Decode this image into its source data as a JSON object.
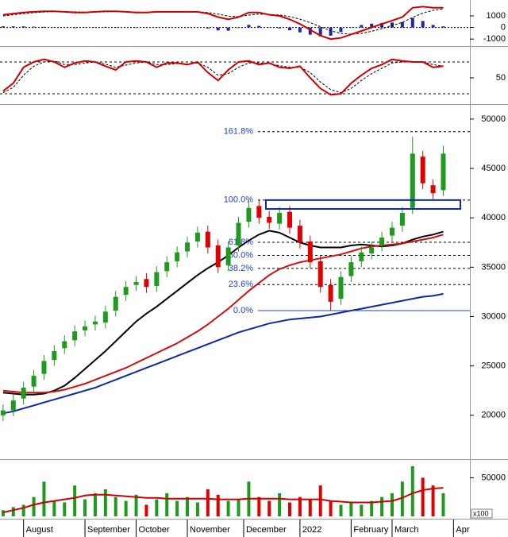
{
  "chart_data": [
    {
      "type": "macd",
      "ylim": [
        -1400,
        2100
      ],
      "yticks": [
        1000,
        0,
        -1000
      ],
      "macd": {
        "color": "#d00000",
        "values": [
          1100,
          1200,
          1300,
          1350,
          1400,
          1400,
          1350,
          1300,
          1300,
          1350,
          1400,
          1400,
          1350,
          1300,
          1300,
          1350,
          1350,
          1350,
          1350,
          1350,
          1200,
          900,
          700,
          900,
          1300,
          1300,
          1100,
          1000,
          700,
          300,
          -200,
          -700,
          -1000,
          -900,
          -600,
          -300,
          0,
          300,
          600,
          900,
          1700,
          1800,
          1700,
          1700
        ]
      },
      "signal": {
        "color": "#000000",
        "values": [
          1000,
          1100,
          1200,
          1280,
          1340,
          1370,
          1370,
          1350,
          1330,
          1330,
          1350,
          1370,
          1360,
          1340,
          1320,
          1330,
          1340,
          1340,
          1340,
          1340,
          1290,
          1150,
          980,
          940,
          1070,
          1160,
          1130,
          1080,
          940,
          720,
          420,
          70,
          -290,
          -510,
          -580,
          -510,
          -330,
          -100,
          170,
          440,
          870,
          1240,
          1480,
          1600
        ]
      },
      "histogram": {
        "color": "#1a2aa8",
        "values": [
          100,
          100,
          100,
          70,
          60,
          30,
          -20,
          -50,
          -30,
          20,
          50,
          30,
          -10,
          -40,
          -20,
          20,
          10,
          10,
          10,
          10,
          -90,
          -250,
          -280,
          -40,
          230,
          140,
          -30,
          -80,
          -240,
          -420,
          -620,
          -770,
          -710,
          -390,
          -20,
          210,
          330,
          400,
          430,
          460,
          830,
          560,
          220,
          100
        ]
      }
    },
    {
      "type": "stochastic",
      "ylim": [
        5,
        104
      ],
      "yticks": [
        50
      ],
      "levels": [
        20,
        80
      ],
      "k": {
        "color": "#d00000",
        "values": [
          25,
          40,
          70,
          80,
          85,
          80,
          70,
          78,
          82,
          80,
          72,
          65,
          80,
          82,
          80,
          70,
          78,
          78,
          75,
          80,
          60,
          45,
          65,
          80,
          82,
          75,
          78,
          70,
          68,
          72,
          50,
          30,
          18,
          20,
          40,
          55,
          68,
          75,
          85,
          82,
          80,
          80,
          70,
          72
        ]
      },
      "d": {
        "color": "#000000",
        "values": [
          22,
          32,
          55,
          72,
          80,
          82,
          75,
          75,
          78,
          80,
          76,
          70,
          74,
          78,
          80,
          75,
          75,
          77,
          76,
          78,
          70,
          55,
          58,
          70,
          78,
          78,
          77,
          73,
          70,
          70,
          60,
          42,
          28,
          22,
          30,
          45,
          58,
          68,
          78,
          80,
          80,
          80,
          75,
          72
        ]
      }
    },
    {
      "type": "candlestick",
      "ylim": [
        15800,
        51200
      ],
      "yticks": [
        20000,
        25000,
        30000,
        35000,
        40000,
        45000,
        50000
      ],
      "up_color": "#1f9a1f",
      "down_color": "#e00000",
      "open": [
        20000,
        20500,
        21700,
        22900,
        24200,
        25600,
        26800,
        27600,
        28600,
        29200,
        29400,
        30600,
        32200,
        33200,
        33800,
        33100,
        34600,
        35600,
        36600,
        37600,
        38600,
        37200,
        35200,
        37200,
        39600,
        41200,
        40100,
        39400,
        40600,
        39200,
        37600,
        35600,
        33200,
        31800,
        34100,
        35600,
        36400,
        37200,
        38200,
        39200,
        41000,
        46200,
        43300,
        42800
      ],
      "high": [
        21100,
        22100,
        23400,
        24600,
        26100,
        27100,
        28100,
        29100,
        29600,
        30100,
        31100,
        32600,
        33600,
        34100,
        34400,
        35100,
        36100,
        37100,
        38100,
        39100,
        39200,
        37800,
        37600,
        40100,
        41800,
        41800,
        40700,
        41100,
        41200,
        39800,
        38200,
        36200,
        33800,
        34600,
        36100,
        37100,
        37600,
        38600,
        39600,
        41100,
        48200,
        46800,
        43900,
        47300
      ],
      "low": [
        19400,
        19900,
        21100,
        22300,
        23600,
        25000,
        26200,
        27000,
        28000,
        28600,
        28800,
        30000,
        31600,
        32600,
        32400,
        32500,
        34000,
        35000,
        36000,
        37000,
        36400,
        34400,
        34600,
        36600,
        39000,
        39400,
        38900,
        38800,
        38400,
        36900,
        34900,
        32400,
        30600,
        31200,
        33500,
        35000,
        35800,
        36600,
        37600,
        38600,
        40400,
        42900,
        41900,
        42200
      ],
      "close": [
        20500,
        21500,
        22800,
        24000,
        25500,
        26500,
        27500,
        28500,
        29000,
        29500,
        30500,
        32000,
        33000,
        33500,
        33000,
        34500,
        35500,
        36500,
        37500,
        38500,
        37000,
        35000,
        37000,
        39500,
        41000,
        40000,
        39500,
        40500,
        39000,
        37500,
        35500,
        33000,
        31500,
        34000,
        35500,
        36500,
        37000,
        38000,
        39000,
        40500,
        46500,
        43500,
        42500,
        46500
      ],
      "moving_averages": [
        {
          "color": "#000000",
          "values": [
            22300,
            22200,
            22100,
            22100,
            22200,
            22500,
            23000,
            23800,
            24700,
            25600,
            26500,
            27500,
            28500,
            29500,
            30300,
            31000,
            31800,
            32600,
            33400,
            34200,
            34900,
            35500,
            36200,
            37000,
            37700,
            38300,
            38700,
            38500,
            38000,
            37500,
            37200,
            37000,
            37000,
            37000,
            37200,
            37300,
            37200,
            37100,
            37200,
            37400,
            37800,
            38100,
            38300,
            38600
          ]
        },
        {
          "color": "#d01010",
          "values": [
            22500,
            22400,
            22300,
            22300,
            22300,
            22400,
            22600,
            22900,
            23200,
            23600,
            24000,
            24400,
            24800,
            25300,
            25800,
            26300,
            26800,
            27300,
            27900,
            28500,
            29200,
            30000,
            30800,
            31700,
            32600,
            33400,
            34200,
            34800,
            35200,
            35500,
            35700,
            35900,
            36100,
            36300,
            36600,
            36900,
            37100,
            37200,
            37300,
            37400,
            37600,
            37800,
            38000,
            38300
          ]
        },
        {
          "color": "#0a2aa6",
          "values": [
            20200,
            20400,
            20700,
            21000,
            21300,
            21600,
            21900,
            22200,
            22500,
            22800,
            23200,
            23600,
            24000,
            24400,
            24800,
            25200,
            25600,
            26000,
            26400,
            26800,
            27200,
            27600,
            28000,
            28400,
            28700,
            29000,
            29300,
            29500,
            29700,
            29800,
            29900,
            30000,
            30200,
            30400,
            30600,
            30800,
            31000,
            31200,
            31400,
            31600,
            31800,
            32000,
            32100,
            32300
          ]
        }
      ],
      "fibonacci": {
        "color": "#1f3fbf",
        "levels": [
          {
            "label": "161.8%",
            "value": 48722
          },
          {
            "label": "100.0%",
            "value": 41800
          },
          {
            "label": "61.8%",
            "value": 37522
          },
          {
            "label": "50.0%",
            "value": 36200
          },
          {
            "label": "38.2%",
            "value": 34878
          },
          {
            "label": "23.6%",
            "value": 33243
          },
          {
            "label": "0.0%",
            "value": 30600
          }
        ]
      },
      "zone": {
        "low": 40900,
        "high": 41800,
        "color": "#0a2aa6"
      }
    },
    {
      "type": "volume",
      "ylim": [
        0,
        70000
      ],
      "yticks": [
        50000
      ],
      "units_label": "x100",
      "values": [
        8000,
        12000,
        15000,
        25000,
        45000,
        20000,
        18000,
        40000,
        22000,
        30000,
        35000,
        25000,
        20000,
        28000,
        15000,
        22000,
        30000,
        20000,
        25000,
        18000,
        35000,
        28000,
        20000,
        22000,
        45000,
        25000,
        20000,
        30000,
        18000,
        25000,
        22000,
        40000,
        20000,
        15000,
        18000,
        15000,
        20000,
        25000,
        30000,
        45000,
        65000,
        50000,
        40000,
        30000
      ],
      "average": {
        "color": "#d00000",
        "values": [
          5000,
          8000,
          11000,
          15000,
          18000,
          20000,
          22000,
          24000,
          27000,
          28000,
          28000,
          27000,
          26000,
          25000,
          24000,
          24000,
          23000,
          23000,
          23000,
          23000,
          23000,
          22000,
          22000,
          22000,
          23000,
          23000,
          23000,
          23000,
          22000,
          22000,
          22000,
          22000,
          20000,
          19000,
          18000,
          18000,
          18000,
          19000,
          20000,
          24000,
          30000,
          34000,
          36000,
          37000
        ]
      },
      "xlim": [
        -0.3,
        45.6
      ],
      "xticks": [
        {
          "value": 2,
          "label": "August"
        },
        {
          "value": 8,
          "label": "September"
        },
        {
          "value": 13,
          "label": "October"
        },
        {
          "value": 18,
          "label": "November"
        },
        {
          "value": 23.5,
          "label": "December"
        },
        {
          "value": 29,
          "label": "2022"
        },
        {
          "value": 34,
          "label": "February"
        },
        {
          "value": 38,
          "label": "March"
        },
        {
          "value": 44,
          "label": "Apr"
        }
      ]
    }
  ]
}
